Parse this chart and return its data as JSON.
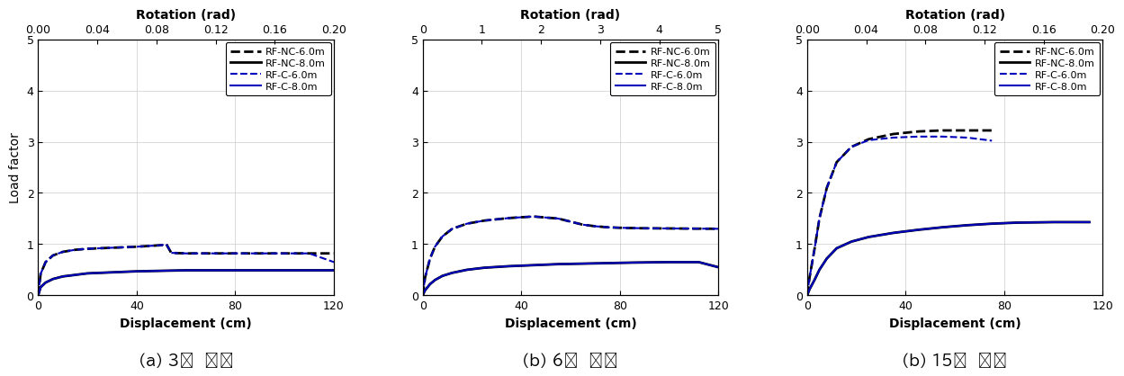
{
  "panels": [
    {
      "subtitle": "(a) 3충  모델",
      "xlim_disp": [
        0,
        120
      ],
      "ylim": [
        0,
        5
      ],
      "xticks_disp": [
        0,
        40,
        80,
        120
      ],
      "yticks": [
        0,
        1,
        2,
        3,
        4,
        5
      ],
      "rot_xlim": [
        0,
        0.2
      ],
      "rot_xticks": [
        0,
        0.04,
        0.08,
        0.12,
        0.16,
        0.2
      ],
      "series": [
        {
          "label": "RF-NC-6.0m",
          "color": "#000000",
          "linestyle": "dashed",
          "linewidth": 2.0,
          "x": [
            0,
            1,
            3,
            6,
            10,
            15,
            20,
            30,
            40,
            50,
            52,
            54,
            60,
            70,
            80,
            90,
            100,
            110,
            120
          ],
          "y": [
            0,
            0.42,
            0.65,
            0.78,
            0.85,
            0.89,
            0.91,
            0.93,
            0.95,
            0.98,
            1.0,
            0.83,
            0.82,
            0.82,
            0.82,
            0.82,
            0.82,
            0.82,
            0.82
          ]
        },
        {
          "label": "RF-NC-8.0m",
          "color": "#000000",
          "linestyle": "solid",
          "linewidth": 2.0,
          "x": [
            0,
            1,
            3,
            6,
            10,
            15,
            20,
            30,
            40,
            50,
            60,
            70,
            80,
            90,
            100,
            110,
            120
          ],
          "y": [
            0,
            0.16,
            0.25,
            0.32,
            0.37,
            0.4,
            0.43,
            0.45,
            0.47,
            0.48,
            0.49,
            0.49,
            0.49,
            0.49,
            0.49,
            0.49,
            0.49
          ]
        },
        {
          "label": "RF-C-6.0m",
          "color": "#0000bb",
          "linestyle": "dashed",
          "linewidth": 1.5,
          "x": [
            0,
            1,
            3,
            6,
            10,
            15,
            20,
            30,
            40,
            50,
            52,
            54,
            60,
            70,
            80,
            90,
            100,
            110,
            120
          ],
          "y": [
            0,
            0.42,
            0.65,
            0.78,
            0.85,
            0.89,
            0.91,
            0.93,
            0.95,
            0.98,
            1.0,
            0.83,
            0.82,
            0.82,
            0.82,
            0.82,
            0.82,
            0.82,
            0.65
          ]
        },
        {
          "label": "RF-C-8.0m",
          "color": "#0000bb",
          "linestyle": "solid",
          "linewidth": 1.5,
          "x": [
            0,
            1,
            3,
            6,
            10,
            15,
            20,
            30,
            40,
            50,
            60,
            70,
            80,
            90,
            100,
            110,
            120
          ],
          "y": [
            0,
            0.16,
            0.25,
            0.32,
            0.37,
            0.4,
            0.43,
            0.45,
            0.47,
            0.48,
            0.49,
            0.49,
            0.49,
            0.49,
            0.49,
            0.49,
            0.49
          ]
        }
      ]
    },
    {
      "subtitle": "(b) 6충  모델",
      "xlim_disp": [
        0,
        120
      ],
      "ylim": [
        0,
        5
      ],
      "xticks_disp": [
        0,
        40,
        80,
        120
      ],
      "yticks": [
        0,
        1,
        2,
        3,
        4,
        5
      ],
      "rot_xlim": [
        0,
        5
      ],
      "rot_xticks": [
        0,
        1,
        2,
        3,
        4,
        5
      ],
      "series": [
        {
          "label": "RF-NC-6.0m",
          "color": "#000000",
          "linestyle": "dashed",
          "linewidth": 2.0,
          "x": [
            0,
            1,
            3,
            5,
            8,
            12,
            18,
            25,
            35,
            45,
            55,
            65,
            70,
            75,
            80,
            90,
            120
          ],
          "y": [
            0,
            0.35,
            0.72,
            0.95,
            1.15,
            1.3,
            1.4,
            1.46,
            1.51,
            1.54,
            1.5,
            1.38,
            1.35,
            1.33,
            1.32,
            1.31,
            1.3
          ]
        },
        {
          "label": "RF-NC-8.0m",
          "color": "#000000",
          "linestyle": "solid",
          "linewidth": 2.0,
          "x": [
            0,
            1,
            3,
            5,
            8,
            12,
            18,
            25,
            35,
            45,
            55,
            65,
            75,
            85,
            100,
            112,
            120
          ],
          "y": [
            0,
            0.1,
            0.22,
            0.3,
            0.38,
            0.44,
            0.5,
            0.54,
            0.57,
            0.59,
            0.61,
            0.62,
            0.63,
            0.64,
            0.65,
            0.65,
            0.55
          ]
        },
        {
          "label": "RF-C-6.0m",
          "color": "#0000bb",
          "linestyle": "dashed",
          "linewidth": 1.5,
          "x": [
            0,
            1,
            3,
            5,
            8,
            12,
            18,
            25,
            35,
            45,
            55,
            65,
            70,
            75,
            80,
            90,
            120
          ],
          "y": [
            0,
            0.35,
            0.72,
            0.95,
            1.15,
            1.3,
            1.4,
            1.46,
            1.51,
            1.54,
            1.5,
            1.38,
            1.35,
            1.33,
            1.32,
            1.31,
            1.3
          ]
        },
        {
          "label": "RF-C-8.0m",
          "color": "#0000bb",
          "linestyle": "solid",
          "linewidth": 1.5,
          "x": [
            0,
            1,
            3,
            5,
            8,
            12,
            18,
            25,
            35,
            45,
            55,
            65,
            75,
            85,
            100,
            112,
            120
          ],
          "y": [
            0,
            0.1,
            0.22,
            0.3,
            0.38,
            0.44,
            0.5,
            0.54,
            0.57,
            0.59,
            0.61,
            0.62,
            0.63,
            0.64,
            0.65,
            0.65,
            0.55
          ]
        }
      ]
    },
    {
      "subtitle": "(b) 15충  모델",
      "xlim_disp": [
        0,
        120
      ],
      "ylim": [
        0,
        5
      ],
      "xticks_disp": [
        0,
        40,
        80,
        120
      ],
      "yticks": [
        0,
        1,
        2,
        3,
        4,
        5
      ],
      "rot_xlim": [
        0,
        0.2
      ],
      "rot_xticks": [
        0,
        0.04,
        0.08,
        0.12,
        0.16,
        0.2
      ],
      "series": [
        {
          "label": "RF-NC-6.0m",
          "color": "#000000",
          "linestyle": "dashed",
          "linewidth": 2.0,
          "x": [
            0,
            1,
            3,
            5,
            8,
            12,
            18,
            25,
            35,
            45,
            55,
            65,
            75
          ],
          "y": [
            0,
            0.35,
            0.9,
            1.5,
            2.1,
            2.6,
            2.9,
            3.05,
            3.15,
            3.2,
            3.22,
            3.22,
            3.22
          ]
        },
        {
          "label": "RF-NC-8.0m",
          "color": "#000000",
          "linestyle": "solid",
          "linewidth": 2.0,
          "x": [
            0,
            1,
            3,
            5,
            8,
            12,
            18,
            25,
            35,
            45,
            55,
            65,
            75,
            85,
            100,
            115
          ],
          "y": [
            0,
            0.12,
            0.3,
            0.5,
            0.72,
            0.92,
            1.05,
            1.14,
            1.22,
            1.28,
            1.33,
            1.37,
            1.4,
            1.42,
            1.43,
            1.43
          ]
        },
        {
          "label": "RF-C-6.0m",
          "color": "#0000bb",
          "linestyle": "dashed",
          "linewidth": 1.5,
          "x": [
            0,
            1,
            3,
            5,
            8,
            12,
            18,
            25,
            35,
            45,
            55,
            65,
            70,
            75
          ],
          "y": [
            0,
            0.35,
            0.9,
            1.5,
            2.1,
            2.6,
            2.9,
            3.03,
            3.08,
            3.1,
            3.1,
            3.08,
            3.05,
            3.02
          ]
        },
        {
          "label": "RF-C-8.0m",
          "color": "#0000bb",
          "linestyle": "solid",
          "linewidth": 1.5,
          "x": [
            0,
            1,
            3,
            5,
            8,
            12,
            18,
            25,
            35,
            45,
            55,
            65,
            75,
            85,
            100,
            115
          ],
          "y": [
            0,
            0.12,
            0.3,
            0.5,
            0.72,
            0.92,
            1.05,
            1.14,
            1.22,
            1.28,
            1.33,
            1.37,
            1.4,
            1.42,
            1.43,
            1.43
          ]
        }
      ]
    }
  ],
  "xlabel": "Displacement (cm)",
  "ylabel": "Load factor",
  "top_xlabel": "Rotation (rad)"
}
